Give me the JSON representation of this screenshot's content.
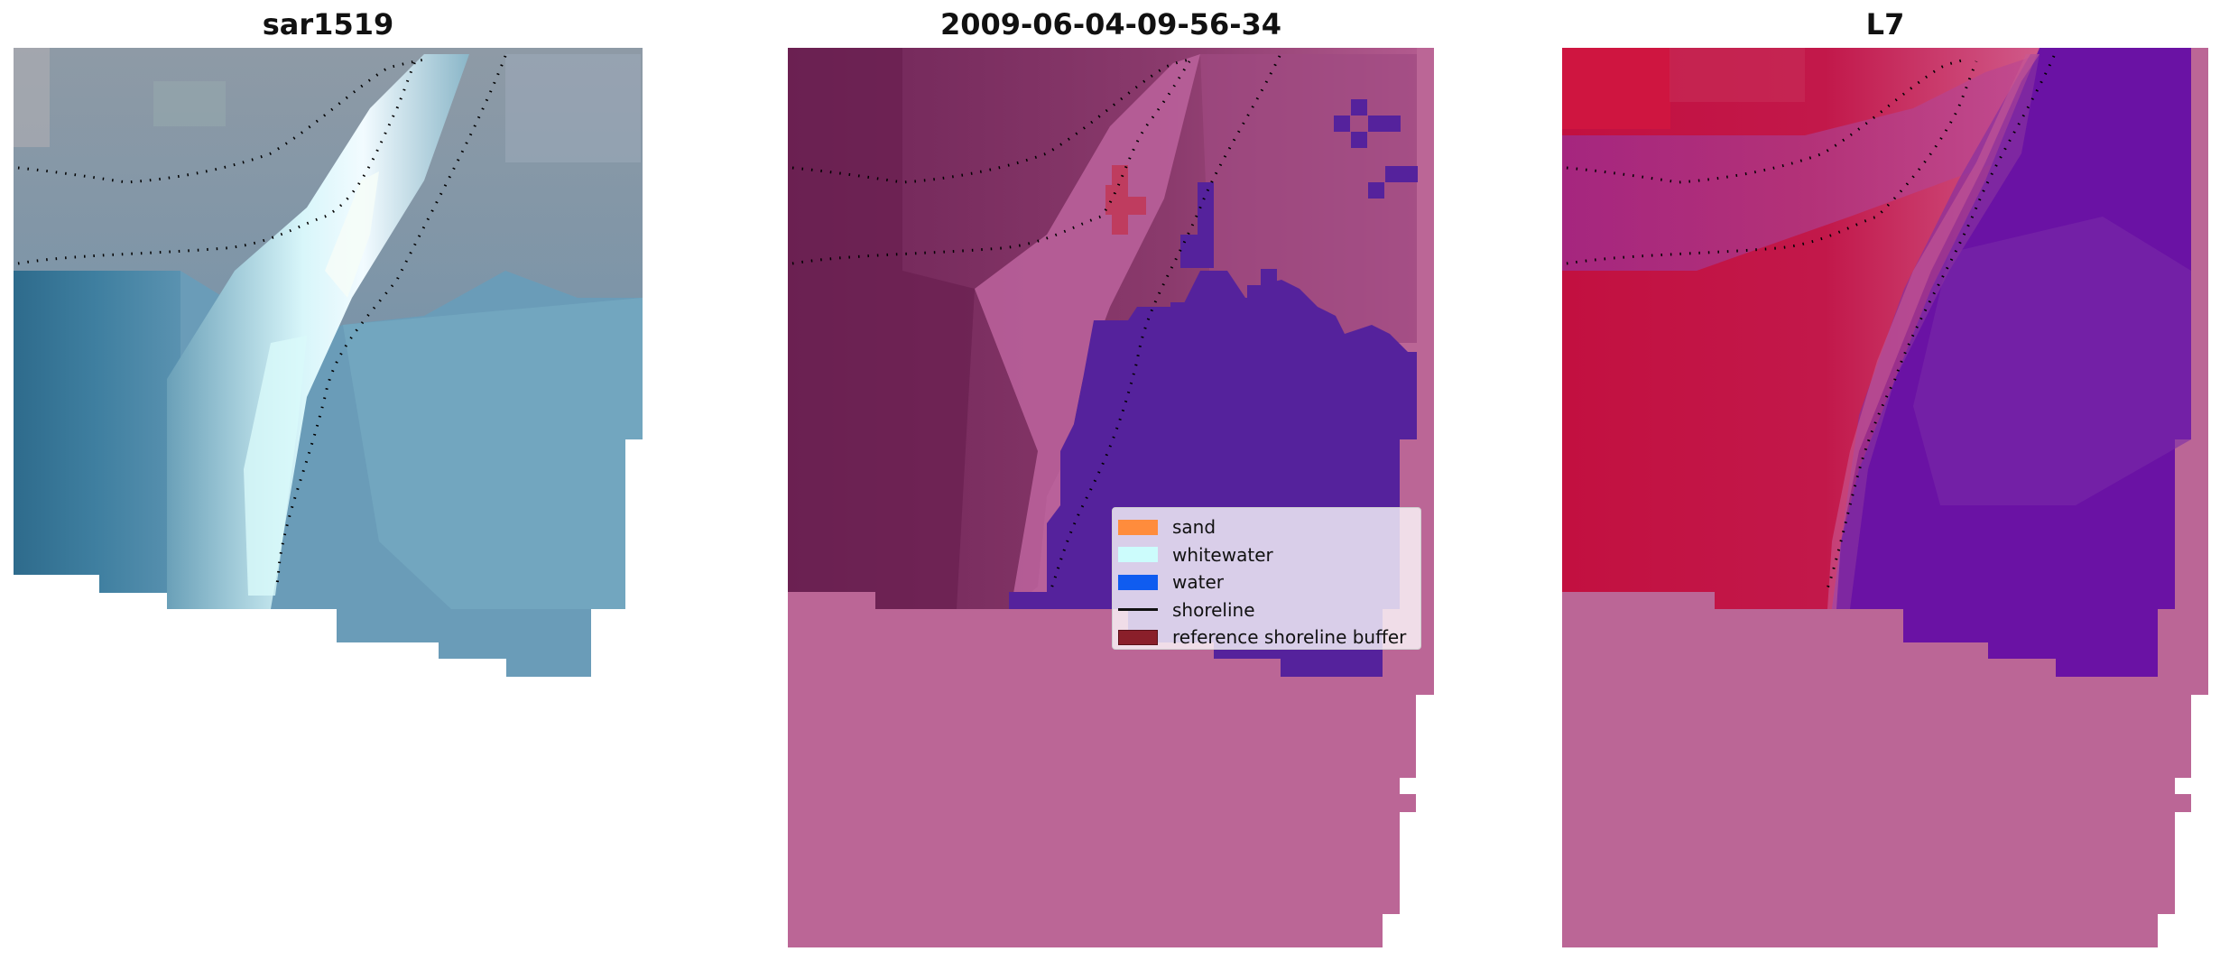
{
  "panels": [
    {
      "title": "sar1519"
    },
    {
      "title": "2009-06-04-09-56-34"
    },
    {
      "title": "L7"
    }
  ],
  "legend": {
    "items": [
      {
        "label": "sand",
        "color": "#ff8c3c",
        "kind": "patch"
      },
      {
        "label": "whitewater",
        "color": "#ccfcfc",
        "kind": "patch"
      },
      {
        "label": "water",
        "color": "#0f5cf0",
        "kind": "patch"
      },
      {
        "label": "shoreline",
        "color": "#111111",
        "kind": "line"
      },
      {
        "label": "reference shoreline buffer",
        "color": "#8a1f2a",
        "kind": "patch"
      }
    ]
  },
  "colors": {
    "nodata_mask": "#bb6696",
    "sand_tint": "#7a2a5e",
    "water_class": "#55229c",
    "ndwi_land": "#c8143c",
    "ndwi_water": "#6a12a4",
    "rgb_water": "#5f9ab6",
    "rgb_surf": "#d6f4fa",
    "shoreline_dots": "#000000"
  }
}
